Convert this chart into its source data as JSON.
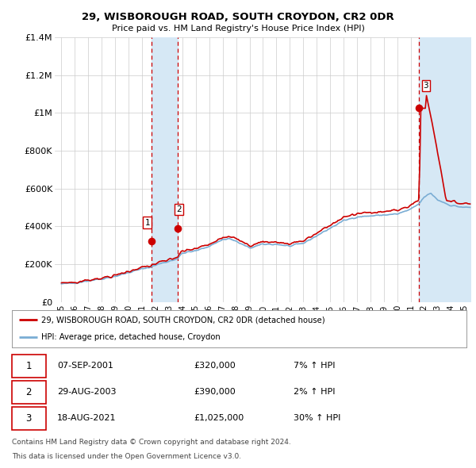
{
  "title": "29, WISBOROUGH ROAD, SOUTH CROYDON, CR2 0DR",
  "subtitle": "Price paid vs. HM Land Registry's House Price Index (HPI)",
  "legend_line1": "29, WISBOROUGH ROAD, SOUTH CROYDON, CR2 0DR (detached house)",
  "legend_line2": "HPI: Average price, detached house, Croydon",
  "footer1": "Contains HM Land Registry data © Crown copyright and database right 2024.",
  "footer2": "This data is licensed under the Open Government Licence v3.0.",
  "sales": [
    {
      "num": 1,
      "date": "07-SEP-2001",
      "price": 320000,
      "year": 2001.69,
      "hpi_pct": "7%"
    },
    {
      "num": 2,
      "date": "29-AUG-2003",
      "price": 390000,
      "year": 2003.66,
      "hpi_pct": "2%"
    },
    {
      "num": 3,
      "date": "18-AUG-2021",
      "price": 1025000,
      "year": 2021.63,
      "hpi_pct": "30%"
    }
  ],
  "xlim": [
    1994.5,
    2025.5
  ],
  "ylim": [
    0,
    1400000
  ],
  "yticks": [
    0,
    200000,
    400000,
    600000,
    800000,
    1000000,
    1200000,
    1400000
  ],
  "ytick_labels": [
    "£0",
    "£200K",
    "£400K",
    "£600K",
    "£800K",
    "£1M",
    "£1.2M",
    "£1.4M"
  ],
  "red_color": "#cc0000",
  "blue_color": "#7aadd4",
  "shade_color": "#d6e8f5",
  "grid_color": "#cccccc"
}
